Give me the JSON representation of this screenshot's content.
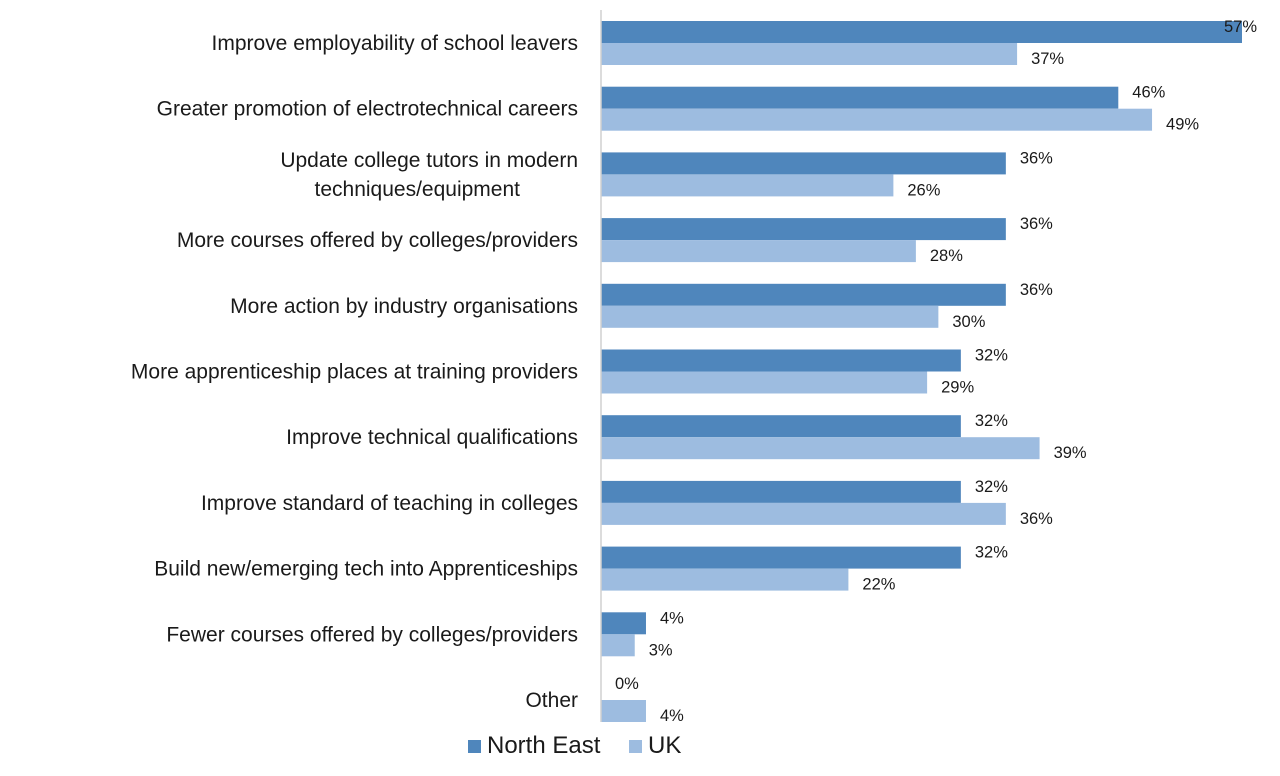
{
  "chart_data": {
    "type": "bar",
    "orientation": "horizontal",
    "categories": [
      [
        "Improve employability of school leavers"
      ],
      [
        "Greater promotion of electrotechnical careers"
      ],
      [
        "Update college tutors in modern",
        "techniques/equipment"
      ],
      [
        "More courses offered by colleges/providers"
      ],
      [
        "More action by industry organisations"
      ],
      [
        "More apprenticeship places at training providers"
      ],
      [
        "Improve technical qualifications"
      ],
      [
        "Improve standard of teaching in colleges"
      ],
      [
        "Build new/emerging tech into Apprenticeships"
      ],
      [
        "Fewer courses offered by colleges/providers"
      ],
      [
        "Other"
      ]
    ],
    "series": [
      {
        "name": "North East",
        "color": "#4f86bc",
        "values": [
          57,
          46,
          36,
          36,
          36,
          32,
          32,
          32,
          32,
          4,
          0
        ]
      },
      {
        "name": "UK",
        "color": "#9dbce0",
        "values": [
          37,
          49,
          26,
          28,
          30,
          29,
          39,
          36,
          22,
          3,
          4
        ]
      }
    ],
    "value_suffix": "%",
    "xlim": [
      0,
      57
    ],
    "grid": false,
    "legend_position": "bottom"
  }
}
